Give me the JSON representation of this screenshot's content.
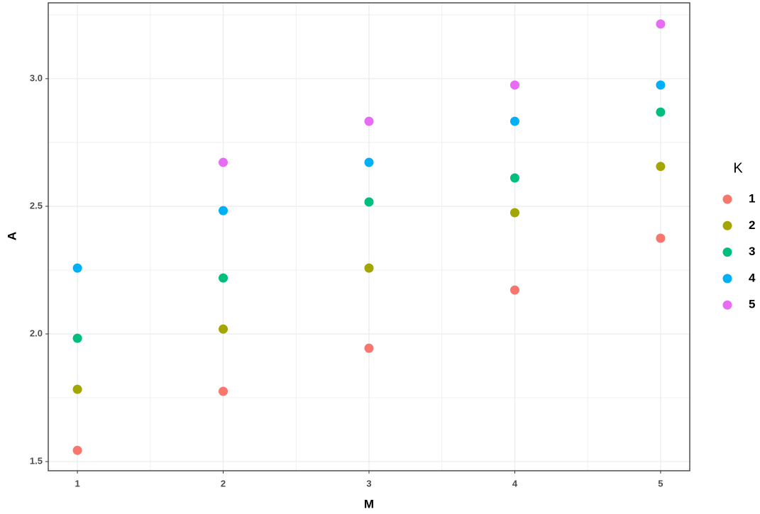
{
  "chart_data": {
    "type": "scatter",
    "x_label": "M",
    "y_label": "A",
    "x": [
      1,
      2,
      3,
      4,
      5
    ],
    "series": [
      {
        "name": "1",
        "color": "#F8766D",
        "values": [
          1.544,
          1.775,
          1.944,
          2.172,
          2.375
        ]
      },
      {
        "name": "2",
        "color": "#A3A500",
        "values": [
          1.783,
          2.019,
          2.258,
          2.475,
          2.656
        ]
      },
      {
        "name": "3",
        "color": "#00BF7D",
        "values": [
          1.983,
          2.219,
          2.517,
          2.611,
          2.869
        ]
      },
      {
        "name": "4",
        "color": "#00B0F6",
        "values": [
          2.258,
          2.483,
          2.672,
          2.833,
          2.975
        ]
      },
      {
        "name": "5",
        "color": "#E76BF3",
        "values": [
          null,
          2.672,
          2.833,
          2.975,
          3.214
        ]
      }
    ],
    "legend_title": "K",
    "legend": "right",
    "xlim": [
      0.8,
      5.2
    ],
    "xticks": [
      1,
      2,
      3,
      4,
      5
    ],
    "ylim": [
      1.464,
      3.297
    ],
    "yticks": [
      {
        "value": 1.5,
        "label": "1.5"
      },
      {
        "value": 2,
        "label": "2.0"
      },
      {
        "value": 2.5,
        "label": "2.5"
      },
      {
        "value": 3,
        "label": "3.0"
      }
    ],
    "grid": true
  }
}
